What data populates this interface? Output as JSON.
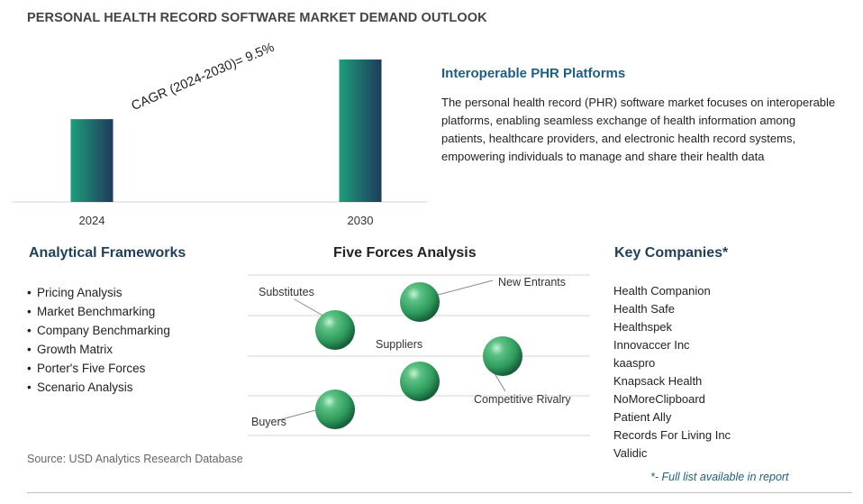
{
  "title": "PERSONAL HEALTH RECORD SOFTWARE MARKET DEMAND OUTLOOK",
  "chart_data": {
    "type": "bar",
    "categories": [
      "2024",
      "2030"
    ],
    "values": [
      1.0,
      1.72
    ],
    "annotation": "CAGR (2024-2030)=  9.5%",
    "bar_gradient": [
      "#1d9e7a",
      "#1f3b5c"
    ]
  },
  "side": {
    "heading": "Interoperable PHR Platforms",
    "description": "The personal health record (PHR) software market focuses on interoperable platforms, enabling seamless exchange of health information among patients, healthcare providers, and electronic health record systems, empowering individuals to manage and share their health data"
  },
  "frameworks": {
    "title": "Analytical Frameworks",
    "items": [
      "Pricing Analysis",
      "Market Benchmarking",
      "Company Benchmarking",
      "Growth Matrix",
      "Porter's Five Forces",
      "Scenario Analysis"
    ]
  },
  "five_forces": {
    "title": "Five Forces Analysis",
    "labels": {
      "substitutes": "Substitutes",
      "new_entrants": "New Entrants",
      "suppliers": "Suppliers",
      "competitive_rivalry": "Competitive Rivalry",
      "buyers": "Buyers"
    },
    "sphere_color": "#2e9a5c"
  },
  "companies": {
    "title": "Key Companies*",
    "items": [
      "Health Companion",
      "Health Safe",
      "Healthspek",
      "Innovaccer Inc",
      "kaaspro",
      "Knapsack Health",
      "NoMoreClipboard",
      "Patient Ally",
      "Records For Living Inc",
      "Validic"
    ],
    "note": "*- Full list available in report"
  },
  "source": "Source: USD Analytics Research Database"
}
